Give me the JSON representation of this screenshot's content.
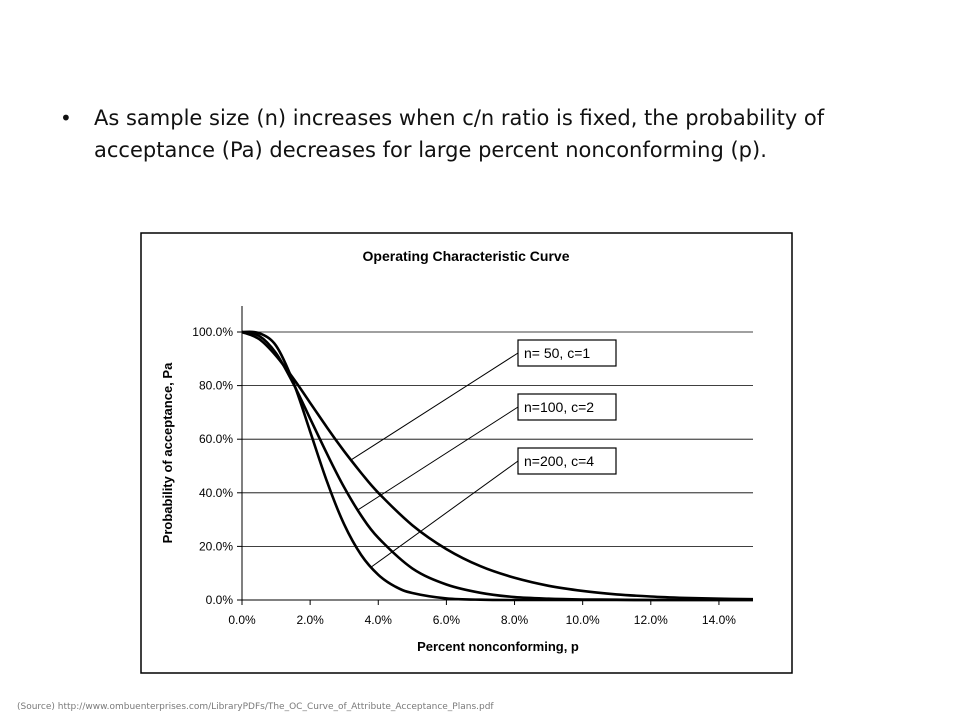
{
  "slide": {
    "bullet": "As sample size (n) increases when c/n ratio is fixed, the probability of acceptance (Pa) decreases for large percent nonconforming (p).",
    "source": "(Source) http://www.ombuenterprises.com/LibraryPDFs/The_OC_Curve_of_Attribute_Acceptance_Plans.pdf"
  },
  "chart_data": {
    "type": "line",
    "title": "Operating Characteristic Curve",
    "xlabel": "Percent nonconforming, p",
    "ylabel": "Probability of acceptance, Pa",
    "xlim": [
      0,
      0.15
    ],
    "ylim": [
      0,
      1.0
    ],
    "x_ticks": [
      {
        "value": 0.0,
        "label": "0.0%"
      },
      {
        "value": 0.02,
        "label": "2.0%"
      },
      {
        "value": 0.04,
        "label": "4.0%"
      },
      {
        "value": 0.06,
        "label": "6.0%"
      },
      {
        "value": 0.08,
        "label": "8.0%"
      },
      {
        "value": 0.1,
        "label": "10.0%"
      },
      {
        "value": 0.12,
        "label": "12.0%"
      },
      {
        "value": 0.14,
        "label": "14.0%"
      }
    ],
    "y_ticks": [
      {
        "value": 0.0,
        "label": "0.0%"
      },
      {
        "value": 0.2,
        "label": "20.0%"
      },
      {
        "value": 0.4,
        "label": "40.0%"
      },
      {
        "value": 0.6,
        "label": "60.0%"
      },
      {
        "value": 0.8,
        "label": "80.0%"
      },
      {
        "value": 1.0,
        "label": "100.0%"
      }
    ],
    "grid": "horizontal",
    "series": [
      {
        "name": "n= 50, c=1",
        "x": [
          0,
          0.005,
          0.01,
          0.015,
          0.02,
          0.025,
          0.03,
          0.035,
          0.04,
          0.05,
          0.06,
          0.07,
          0.08,
          0.09,
          0.1,
          0.11,
          0.12,
          0.13,
          0.14,
          0.15
        ],
        "y": [
          1.0,
          0.974,
          0.911,
          0.828,
          0.736,
          0.643,
          0.555,
          0.474,
          0.4,
          0.279,
          0.19,
          0.126,
          0.083,
          0.053,
          0.034,
          0.021,
          0.013,
          0.008,
          0.005,
          0.003
        ],
        "annotation_at": 0.032
      },
      {
        "name": "n=100, c=2",
        "x": [
          0,
          0.005,
          0.01,
          0.015,
          0.02,
          0.025,
          0.03,
          0.035,
          0.04,
          0.05,
          0.06,
          0.07,
          0.08,
          0.09,
          0.1,
          0.11,
          0.12,
          0.13,
          0.14,
          0.15
        ],
        "y": [
          1.0,
          0.986,
          0.921,
          0.809,
          0.677,
          0.544,
          0.42,
          0.315,
          0.232,
          0.118,
          0.058,
          0.027,
          0.011,
          0.005,
          0.002,
          0.001,
          0.0,
          0.0,
          0.0,
          0.0
        ],
        "annotation_at": 0.034
      },
      {
        "name": "n=200, c=4",
        "x": [
          0,
          0.005,
          0.01,
          0.015,
          0.02,
          0.025,
          0.03,
          0.035,
          0.04,
          0.045,
          0.05,
          0.06,
          0.07,
          0.08,
          0.09,
          0.1,
          0.12,
          0.15
        ],
        "y": [
          1.0,
          0.996,
          0.949,
          0.815,
          0.629,
          0.44,
          0.282,
          0.168,
          0.094,
          0.05,
          0.026,
          0.006,
          0.001,
          0.0,
          0.0,
          0.0,
          0.0,
          0.0
        ],
        "annotation_at": 0.038
      }
    ],
    "legend": "callout labels with leader lines"
  }
}
